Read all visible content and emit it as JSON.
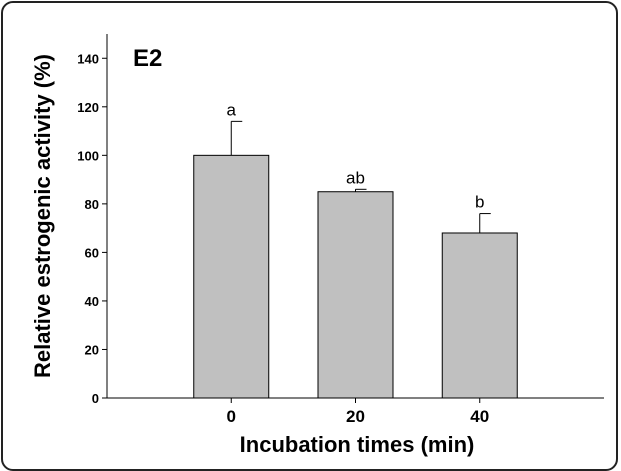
{
  "chart_data": {
    "type": "bar",
    "panel_label": "E2",
    "categories": [
      "0",
      "20",
      "40"
    ],
    "values": [
      100,
      85,
      68
    ],
    "error": [
      14,
      1,
      8
    ],
    "significance": [
      "a",
      "ab",
      "b"
    ],
    "xlabel": "Incubation times (min)",
    "ylabel": "Relative estrogenic activity (%)",
    "ylim": [
      0,
      150
    ],
    "yticks": [
      0,
      20,
      40,
      60,
      80,
      100,
      120,
      140
    ],
    "bar_color": "#c0c0c0",
    "grid": false,
    "legend": "none"
  }
}
